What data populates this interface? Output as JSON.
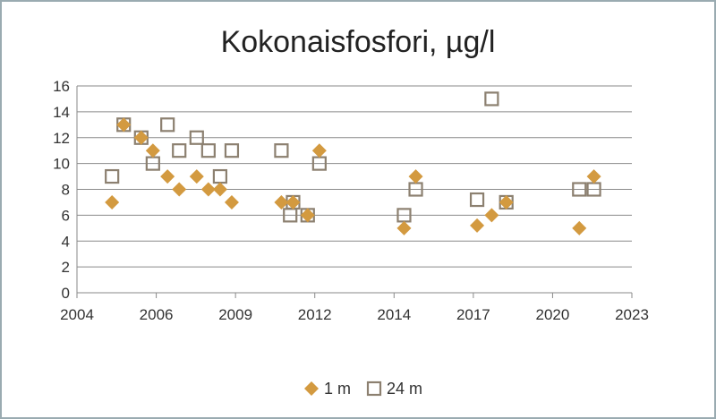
{
  "chart_data": {
    "type": "scatter",
    "title": "Kokonaisfosfori, µg/l",
    "xlabel": "",
    "ylabel": "",
    "xlim": [
      2004,
      2023
    ],
    "ylim": [
      0,
      16
    ],
    "x_ticks": [
      "2004",
      "2006",
      "2009",
      "2012",
      "2014",
      "2017",
      "2020",
      "2023"
    ],
    "y_ticks": [
      "0",
      "2",
      "4",
      "6",
      "8",
      "10",
      "12",
      "14",
      "16"
    ],
    "grid": "horizontal",
    "legend": "bottom",
    "series": [
      {
        "name": "1 m",
        "marker": "diamond",
        "color": "#d39a40",
        "points": [
          [
            2005.2,
            7
          ],
          [
            2005.6,
            13
          ],
          [
            2006.2,
            12
          ],
          [
            2006.6,
            11
          ],
          [
            2007.1,
            9
          ],
          [
            2007.5,
            8
          ],
          [
            2008.1,
            9
          ],
          [
            2008.5,
            8
          ],
          [
            2008.9,
            8
          ],
          [
            2009.3,
            7
          ],
          [
            2011.0,
            7
          ],
          [
            2011.4,
            7
          ],
          [
            2011.9,
            6
          ],
          [
            2012.3,
            11
          ],
          [
            2015.2,
            5
          ],
          [
            2015.6,
            9
          ],
          [
            2017.7,
            5.2
          ],
          [
            2018.2,
            6
          ],
          [
            2018.7,
            7
          ],
          [
            2021.2,
            5
          ],
          [
            2021.7,
            9
          ]
        ]
      },
      {
        "name": "24 m",
        "marker": "square-open",
        "color": "#8c8070",
        "points": [
          [
            2005.2,
            9
          ],
          [
            2005.6,
            13
          ],
          [
            2006.2,
            12
          ],
          [
            2006.6,
            10
          ],
          [
            2007.1,
            13
          ],
          [
            2007.5,
            11
          ],
          [
            2008.1,
            12
          ],
          [
            2008.5,
            11
          ],
          [
            2008.9,
            9
          ],
          [
            2009.3,
            11
          ],
          [
            2011.0,
            11
          ],
          [
            2011.3,
            6
          ],
          [
            2011.4,
            7
          ],
          [
            2011.9,
            6
          ],
          [
            2012.3,
            10
          ],
          [
            2015.2,
            6
          ],
          [
            2015.6,
            8
          ],
          [
            2017.7,
            7.2
          ],
          [
            2018.2,
            15
          ],
          [
            2018.7,
            7
          ],
          [
            2021.2,
            8
          ],
          [
            2021.7,
            8
          ]
        ]
      }
    ]
  }
}
